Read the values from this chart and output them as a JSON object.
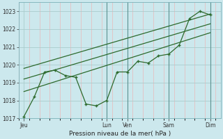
{
  "bg_color": "#cce8ed",
  "grid_color_major": "#aacccc",
  "grid_color_minor": "#eab8b8",
  "line_color": "#2d6a2d",
  "ylabel": "Pression niveau de la mer( hPa )",
  "ylim": [
    1017,
    1023.5
  ],
  "yticks": [
    1017,
    1018,
    1019,
    1020,
    1021,
    1022,
    1023
  ],
  "day_labels": [
    "Jeu",
    "Lun",
    "Ven",
    "Sam",
    "Dim"
  ],
  "day_positions": [
    0,
    16,
    20,
    28,
    36
  ],
  "xlim": [
    -1,
    38
  ],
  "vline_positions": [
    16,
    20,
    28,
    36
  ],
  "series1_x": [
    0,
    2,
    4,
    6,
    8,
    10,
    12,
    14,
    16,
    18,
    20,
    22,
    24,
    26,
    28,
    30,
    32,
    34,
    36
  ],
  "series1_y": [
    1017.1,
    1018.2,
    1019.6,
    1019.7,
    1019.4,
    1019.3,
    1017.8,
    1017.7,
    1018.0,
    1019.6,
    1019.6,
    1020.2,
    1020.1,
    1020.5,
    1020.6,
    1021.1,
    1022.6,
    1023.0,
    1022.8
  ],
  "trend1_x": [
    0,
    36
  ],
  "trend1_y": [
    1018.5,
    1021.8
  ],
  "trend2_x": [
    0,
    36
  ],
  "trend2_y": [
    1019.2,
    1022.3
  ],
  "trend3_x": [
    0,
    36
  ],
  "trend3_y": [
    1019.8,
    1022.85
  ]
}
